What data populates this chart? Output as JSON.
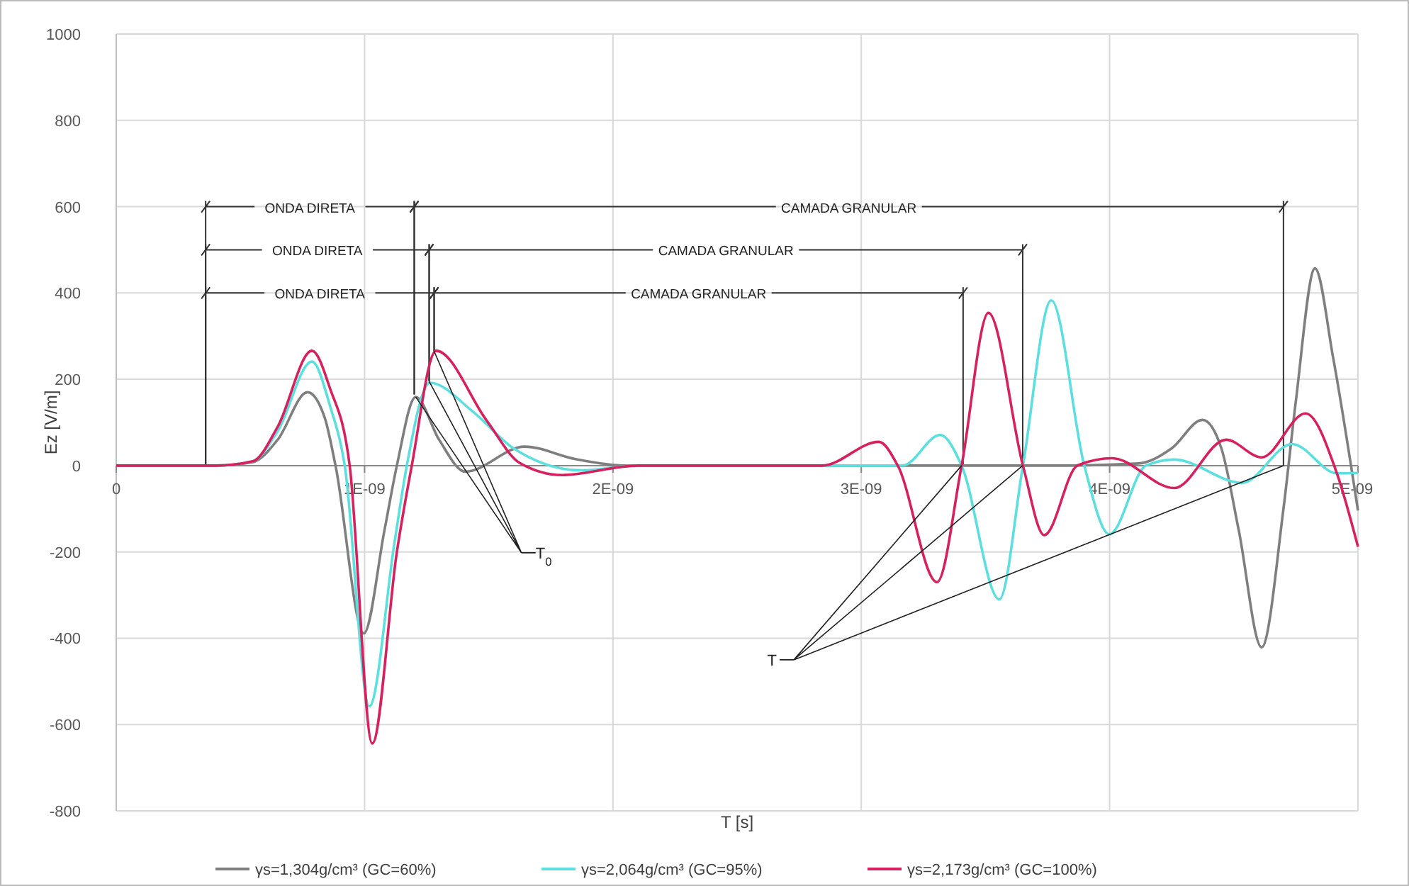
{
  "chart_data": {
    "type": "line",
    "xlabel": "T [s]",
    "ylabel": "Ez [V/m]",
    "xlim": [
      0,
      5e-09
    ],
    "ylim": [
      -800,
      1000
    ],
    "xticks": [
      0,
      {
        "value": 1e-09,
        "label": "1E-09"
      },
      {
        "value": 2e-09,
        "label": "2E-09"
      },
      {
        "value": 3e-09,
        "label": "3E-09"
      },
      {
        "value": 4e-09,
        "label": "4E-09"
      },
      {
        "value": 5e-09,
        "label": "5E-09"
      }
    ],
    "yticks": [
      -800,
      -600,
      -400,
      -200,
      0,
      200,
      400,
      600,
      800,
      1000
    ],
    "grid": true,
    "legend": "bottom",
    "marker": "none",
    "line_style": "solid",
    "series": [
      {
        "name": "γs=1,304g/cm³ (GC=60%)",
        "color": "#7f7f7f",
        "x": [
          0,
          4e-10,
          5.5e-10,
          6.5e-10,
          7.7e-10,
          8.4e-10,
          8.83e-10,
          9.97e-10,
          1.08e-09,
          1.13e-09,
          1.206e-09,
          1.3e-09,
          1.406e-09,
          1.644e-09,
          1.85e-09,
          2.05e-09,
          3.8e-09,
          4.117e-09,
          4.25e-09,
          4.374e-09,
          4.45e-09,
          4.52e-09,
          4.612e-09,
          4.7e-09,
          4.75e-09,
          4.827e-09,
          4.9e-09,
          5e-09
        ],
        "values": [
          0,
          0,
          8,
          60,
          170,
          110,
          0,
          -389,
          -150,
          0,
          159,
          60,
          -14,
          44,
          15,
          0,
          0,
          5,
          40,
          106,
          40,
          -150,
          -421,
          -100,
          150,
          457,
          250,
          -104
        ]
      },
      {
        "name": "γs=2,064g/cm³ (GC=95%)",
        "color": "#5ddfdf",
        "x": [
          0,
          4e-10,
          5.5e-10,
          6.5e-10,
          7.88e-10,
          8.6e-10,
          9.2e-10,
          1.019e-09,
          1.12e-09,
          1.17e-09,
          1.263e-09,
          1.434e-09,
          1.6e-09,
          1.872e-09,
          2.1e-09,
          3.166e-09,
          3.318e-09,
          3.404e-09,
          3.556e-09,
          3.651e-09,
          3.765e-09,
          3.898e-09,
          3.999e-09,
          4.146e-09,
          4.26e-09,
          4.534e-09,
          4.735e-09,
          4.916e-09,
          5e-09
        ],
        "values": [
          0,
          0,
          10,
          80,
          241,
          140,
          0,
          -558,
          -180,
          0,
          192,
          126,
          40,
          -11,
          0,
          0,
          71,
          0,
          -310,
          0,
          383,
          0,
          -159,
          0,
          14,
          -40,
          50,
          -18,
          -17
        ]
      },
      {
        "name": "γs=2,173g/cm³ (GC=100%)",
        "color": "#d6215f",
        "x": [
          0,
          4e-10,
          5.5e-10,
          6.5e-10,
          7.88e-10,
          8.6e-10,
          9.4e-10,
          1.031e-09,
          1.13e-09,
          1.19e-09,
          1.288e-09,
          1.492e-09,
          1.625e-09,
          1.796e-09,
          2.1e-09,
          2.842e-09,
          3.071e-09,
          3.147e-09,
          3.305e-09,
          3.404e-09,
          3.512e-09,
          3.651e-09,
          3.737e-09,
          3.87e-09,
          4.01e-09,
          4.26e-09,
          4.469e-09,
          4.612e-09,
          4.789e-09,
          4.914e-09,
          5e-09
        ],
        "values": [
          0,
          0,
          10,
          90,
          266,
          180,
          0,
          -644,
          -200,
          0,
          266,
          104,
          6,
          -22,
          0,
          0,
          55,
          0,
          -270,
          0,
          354,
          0,
          -161,
          0,
          17,
          -52,
          60,
          19,
          121,
          -16,
          -188
        ]
      }
    ],
    "annotations": [
      "ONDA DIRETA",
      "ONDA DIRETA",
      "ONDA DIRETA",
      "CAMADA GRANULAR",
      "CAMADA GRANULAR",
      "CAMADA GRANULAR",
      {
        "text": "T$_{0}$",
        "x": 1.206e-09,
        "y": 159
      },
      {
        "text": "T",
        "x": 3.404e-09,
        "y": 0
      }
    ]
  }
}
